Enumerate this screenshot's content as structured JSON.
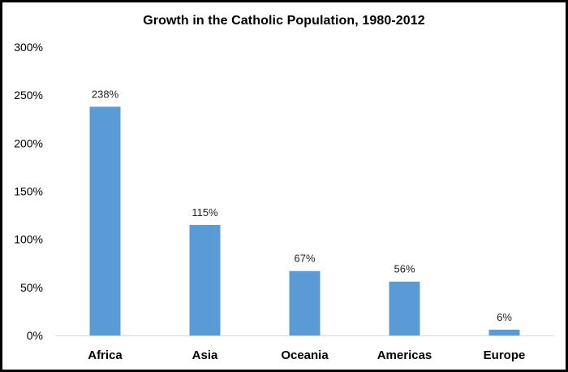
{
  "chart_data": {
    "type": "bar",
    "title": "Growth in the Catholic Population, 1980-2012",
    "xlabel": "",
    "ylabel": "",
    "categories": [
      "Africa",
      "Asia",
      "Oceania",
      "Americas",
      "Europe"
    ],
    "values": [
      238,
      115,
      67,
      56,
      6
    ],
    "data_labels": [
      "238%",
      "115%",
      "67%",
      "56%",
      "6%"
    ],
    "y_ticks": [
      0,
      50,
      100,
      150,
      200,
      250,
      300
    ],
    "y_tick_labels": [
      "0%",
      "50%",
      "100%",
      "150%",
      "200%",
      "250%",
      "300%"
    ],
    "ylim": [
      0,
      300
    ],
    "grid": false,
    "legend": "none",
    "bar_color": "#5B9BD5",
    "axis_color": "#D9D9D9"
  }
}
